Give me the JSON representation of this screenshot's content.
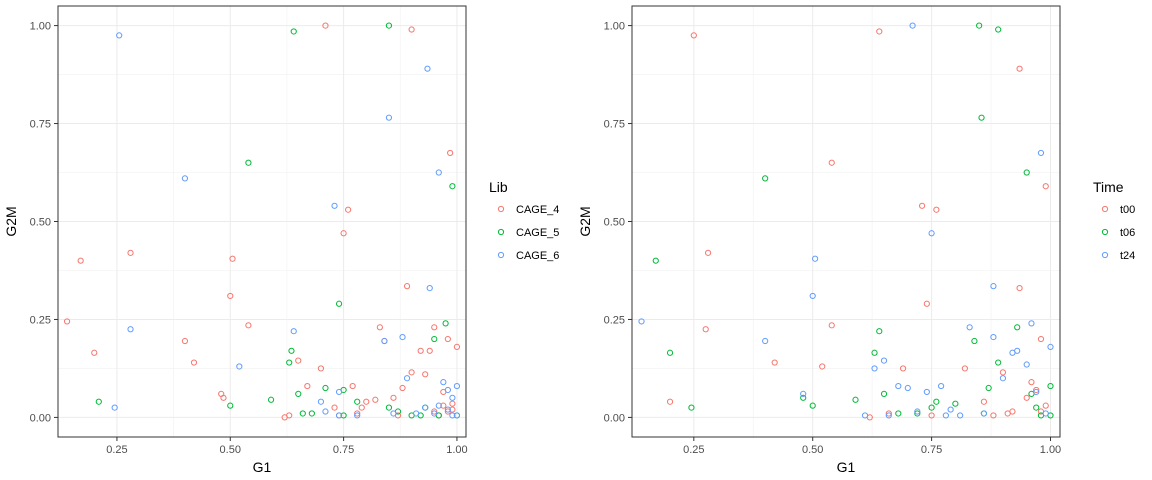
{
  "colors": {
    "red": "#F8766D",
    "green": "#00BA38",
    "blue": "#619CFF",
    "grid_major": "#ebebeb",
    "grid_minor": "#f4f4f4",
    "border": "#333333"
  },
  "chart_data": [
    {
      "type": "scatter",
      "xlabel": "G1",
      "ylabel": "G2M",
      "xlim": [
        0.12,
        1.02
      ],
      "ylim": [
        -0.05,
        1.05
      ],
      "xticks": [
        0.25,
        0.5,
        0.75,
        1.0
      ],
      "xtick_labels": [
        "0.25",
        "0.50",
        "0.75",
        "1.00"
      ],
      "yticks": [
        0.0,
        0.25,
        0.5,
        0.75,
        1.0
      ],
      "ytick_labels": [
        "0.00",
        "0.25",
        "0.50",
        "0.75",
        "1.00"
      ],
      "grid": true,
      "legend": {
        "title": "Lib",
        "position": "right",
        "entries": [
          "CAGE_4",
          "CAGE_5",
          "CAGE_6"
        ]
      },
      "series": [
        {
          "name": "CAGE_4",
          "color": "#F8766D",
          "points": [
            [
              0.14,
              0.245
            ],
            [
              0.17,
              0.4
            ],
            [
              0.2,
              0.165
            ],
            [
              0.28,
              0.42
            ],
            [
              0.4,
              0.195
            ],
            [
              0.42,
              0.14
            ],
            [
              0.48,
              0.06
            ],
            [
              0.485,
              0.05
            ],
            [
              0.5,
              0.31
            ],
            [
              0.505,
              0.405
            ],
            [
              0.54,
              0.235
            ],
            [
              0.62,
              0.0
            ],
            [
              0.63,
              0.005
            ],
            [
              0.65,
              0.145
            ],
            [
              0.67,
              0.08
            ],
            [
              0.7,
              0.125
            ],
            [
              0.71,
              1.0
            ],
            [
              0.73,
              0.025
            ],
            [
              0.74,
              0.005
            ],
            [
              0.75,
              0.47
            ],
            [
              0.76,
              0.53
            ],
            [
              0.77,
              0.08
            ],
            [
              0.78,
              0.01
            ],
            [
              0.79,
              0.025
            ],
            [
              0.8,
              0.04
            ],
            [
              0.82,
              0.045
            ],
            [
              0.83,
              0.23
            ],
            [
              0.84,
              0.195
            ],
            [
              0.86,
              0.05
            ],
            [
              0.87,
              0.005
            ],
            [
              0.88,
              0.075
            ],
            [
              0.89,
              0.335
            ],
            [
              0.9,
              0.99
            ],
            [
              0.9,
              0.115
            ],
            [
              0.92,
              0.17
            ],
            [
              0.93,
              0.11
            ],
            [
              0.94,
              0.17
            ],
            [
              0.95,
              0.23
            ],
            [
              0.95,
              0.015
            ],
            [
              0.96,
              0.005
            ],
            [
              0.97,
              0.03
            ],
            [
              0.97,
              0.065
            ],
            [
              0.98,
              0.2
            ],
            [
              0.985,
              0.675
            ],
            [
              0.99,
              0.02
            ],
            [
              1.0,
              0.18
            ],
            [
              0.99,
              0.035
            ],
            [
              0.98,
              0.015
            ]
          ]
        },
        {
          "name": "CAGE_5",
          "color": "#00BA38",
          "points": [
            [
              0.21,
              0.04
            ],
            [
              0.5,
              0.03
            ],
            [
              0.54,
              0.65
            ],
            [
              0.59,
              0.045
            ],
            [
              0.63,
              0.14
            ],
            [
              0.635,
              0.17
            ],
            [
              0.64,
              0.985
            ],
            [
              0.65,
              0.06
            ],
            [
              0.66,
              0.01
            ],
            [
              0.68,
              0.01
            ],
            [
              0.71,
              0.075
            ],
            [
              0.74,
              0.29
            ],
            [
              0.75,
              0.07
            ],
            [
              0.75,
              0.005
            ],
            [
              0.78,
              0.04
            ],
            [
              0.85,
              1.0
            ],
            [
              0.85,
              0.025
            ],
            [
              0.87,
              0.015
            ],
            [
              0.9,
              0.005
            ],
            [
              0.92,
              0.005
            ],
            [
              0.93,
              0.025
            ],
            [
              0.95,
              0.2
            ],
            [
              0.96,
              0.005
            ],
            [
              0.975,
              0.24
            ],
            [
              0.99,
              0.59
            ],
            [
              1.0,
              0.005
            ]
          ]
        },
        {
          "name": "CAGE_6",
          "color": "#619CFF",
          "points": [
            [
              0.245,
              0.025
            ],
            [
              0.255,
              0.975
            ],
            [
              0.28,
              0.225
            ],
            [
              0.4,
              0.61
            ],
            [
              0.52,
              0.13
            ],
            [
              0.64,
              0.22
            ],
            [
              0.7,
              0.04
            ],
            [
              0.71,
              0.015
            ],
            [
              0.73,
              0.54
            ],
            [
              0.74,
              0.065
            ],
            [
              0.74,
              0.005
            ],
            [
              0.78,
              0.005
            ],
            [
              0.84,
              0.195
            ],
            [
              0.85,
              0.765
            ],
            [
              0.86,
              0.01
            ],
            [
              0.88,
              0.205
            ],
            [
              0.89,
              0.1
            ],
            [
              0.91,
              0.01
            ],
            [
              0.93,
              0.025
            ],
            [
              0.935,
              0.89
            ],
            [
              0.94,
              0.33
            ],
            [
              0.95,
              0.01
            ],
            [
              0.96,
              0.625
            ],
            [
              0.96,
              0.03
            ],
            [
              0.97,
              0.09
            ],
            [
              0.98,
              0.07
            ],
            [
              0.98,
              0.02
            ],
            [
              0.99,
              0.05
            ],
            [
              1.0,
              0.08
            ],
            [
              0.99,
              0.005
            ],
            [
              1.0,
              0.005
            ]
          ]
        }
      ]
    },
    {
      "type": "scatter",
      "xlabel": "G1",
      "ylabel": "G2M",
      "xlim": [
        0.12,
        1.02
      ],
      "ylim": [
        -0.05,
        1.05
      ],
      "xticks": [
        0.25,
        0.5,
        0.75,
        1.0
      ],
      "xtick_labels": [
        "0.25",
        "0.50",
        "0.75",
        "1.00"
      ],
      "yticks": [
        0.0,
        0.25,
        0.5,
        0.75,
        1.0
      ],
      "ytick_labels": [
        "0.00",
        "0.25",
        "0.50",
        "0.75",
        "1.00"
      ],
      "grid": true,
      "legend": {
        "title": "Time",
        "position": "right",
        "entries": [
          "t00",
          "t06",
          "t24"
        ]
      },
      "series": [
        {
          "name": "t00",
          "color": "#F8766D",
          "points": [
            [
              0.2,
              0.04
            ],
            [
              0.25,
              0.975
            ],
            [
              0.275,
              0.225
            ],
            [
              0.28,
              0.42
            ],
            [
              0.42,
              0.14
            ],
            [
              0.52,
              0.13
            ],
            [
              0.54,
              0.65
            ],
            [
              0.54,
              0.235
            ],
            [
              0.62,
              0.0
            ],
            [
              0.64,
              0.985
            ],
            [
              0.66,
              0.01
            ],
            [
              0.69,
              0.125
            ],
            [
              0.73,
              0.54
            ],
            [
              0.74,
              0.29
            ],
            [
              0.75,
              0.005
            ],
            [
              0.76,
              0.53
            ],
            [
              0.82,
              0.125
            ],
            [
              0.86,
              0.04
            ],
            [
              0.88,
              0.005
            ],
            [
              0.9,
              0.115
            ],
            [
              0.91,
              0.01
            ],
            [
              0.92,
              0.015
            ],
            [
              0.935,
              0.89
            ],
            [
              0.935,
              0.33
            ],
            [
              0.95,
              0.05
            ],
            [
              0.96,
              0.09
            ],
            [
              0.97,
              0.07
            ],
            [
              0.98,
              0.2
            ],
            [
              0.99,
              0.59
            ],
            [
              0.99,
              0.03
            ],
            [
              0.98,
              0.015
            ]
          ]
        },
        {
          "name": "t06",
          "color": "#00BA38",
          "points": [
            [
              0.17,
              0.4
            ],
            [
              0.2,
              0.165
            ],
            [
              0.245,
              0.025
            ],
            [
              0.4,
              0.61
            ],
            [
              0.48,
              0.05
            ],
            [
              0.5,
              0.03
            ],
            [
              0.59,
              0.045
            ],
            [
              0.63,
              0.165
            ],
            [
              0.64,
              0.22
            ],
            [
              0.65,
              0.06
            ],
            [
              0.68,
              0.01
            ],
            [
              0.72,
              0.01
            ],
            [
              0.75,
              0.025
            ],
            [
              0.76,
              0.04
            ],
            [
              0.8,
              0.035
            ],
            [
              0.84,
              0.195
            ],
            [
              0.85,
              1.0
            ],
            [
              0.855,
              0.765
            ],
            [
              0.86,
              0.01
            ],
            [
              0.87,
              0.075
            ],
            [
              0.89,
              0.99
            ],
            [
              0.89,
              0.14
            ],
            [
              0.93,
              0.23
            ],
            [
              0.95,
              0.625
            ],
            [
              0.96,
              0.06
            ],
            [
              0.97,
              0.025
            ],
            [
              0.98,
              0.005
            ],
            [
              1.0,
              0.08
            ],
            [
              1.0,
              0.005
            ]
          ]
        },
        {
          "name": "t24",
          "color": "#619CFF",
          "points": [
            [
              0.14,
              0.245
            ],
            [
              0.4,
              0.195
            ],
            [
              0.48,
              0.06
            ],
            [
              0.5,
              0.31
            ],
            [
              0.505,
              0.405
            ],
            [
              0.61,
              0.005
            ],
            [
              0.63,
              0.125
            ],
            [
              0.65,
              0.145
            ],
            [
              0.66,
              0.005
            ],
            [
              0.68,
              0.08
            ],
            [
              0.7,
              0.075
            ],
            [
              0.71,
              1.0
            ],
            [
              0.72,
              0.015
            ],
            [
              0.74,
              0.065
            ],
            [
              0.75,
              0.47
            ],
            [
              0.77,
              0.08
            ],
            [
              0.78,
              0.005
            ],
            [
              0.79,
              0.02
            ],
            [
              0.81,
              0.005
            ],
            [
              0.83,
              0.23
            ],
            [
              0.86,
              0.01
            ],
            [
              0.88,
              0.205
            ],
            [
              0.88,
              0.335
            ],
            [
              0.9,
              0.1
            ],
            [
              0.92,
              0.165
            ],
            [
              0.93,
              0.17
            ],
            [
              0.95,
              0.135
            ],
            [
              0.96,
              0.24
            ],
            [
              0.97,
              0.065
            ],
            [
              0.98,
              0.675
            ],
            [
              1.0,
              0.18
            ],
            [
              0.99,
              0.01
            ]
          ]
        }
      ]
    }
  ]
}
